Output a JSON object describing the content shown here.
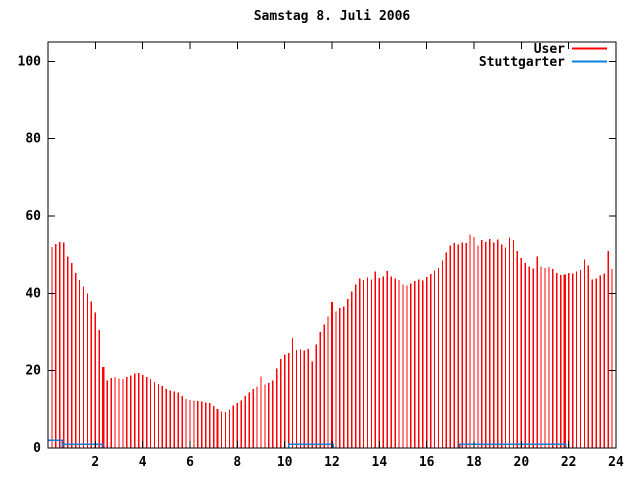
{
  "chart_data": {
    "type": "bar",
    "title": "Samstag 8. Juli 2006",
    "xlabel": "",
    "ylabel": "",
    "xlim": [
      0,
      24
    ],
    "ylim": [
      0,
      105
    ],
    "x_ticks": [
      2,
      4,
      6,
      8,
      10,
      12,
      14,
      16,
      18,
      20,
      22,
      24
    ],
    "y_ticks": [
      0,
      20,
      40,
      60,
      80,
      100
    ],
    "grid": false,
    "legend_position": "top-right",
    "series": [
      {
        "name": "User",
        "color": "#ff0000",
        "style": "impulses",
        "x_start_hours": 0.16667,
        "x_step_hours": 0.16667,
        "bold_marker_indices": [
          13,
          42,
          71,
          130
        ],
        "values": [
          52.0,
          52.8,
          53.3,
          53.1,
          49.5,
          47.9,
          45.3,
          43.5,
          41.8,
          39.9,
          37.9,
          35.0,
          30.5,
          21.0,
          17.5,
          18.1,
          18.4,
          18.0,
          17.8,
          18.3,
          18.8,
          19.3,
          19.4,
          18.9,
          18.4,
          17.9,
          17.1,
          16.5,
          16.0,
          15.3,
          14.9,
          14.6,
          14.3,
          13.4,
          12.7,
          12.4,
          12.3,
          12.1,
          12.0,
          11.8,
          11.6,
          10.9,
          10.1,
          9.4,
          9.3,
          10.0,
          11.0,
          11.6,
          12.3,
          13.5,
          14.4,
          15.2,
          15.9,
          18.5,
          16.4,
          16.8,
          17.5,
          20.5,
          23.0,
          24.2,
          24.6,
          28.4,
          25.3,
          25.5,
          25.2,
          25.6,
          22.4,
          26.8,
          30.0,
          32.0,
          34.0,
          37.8,
          35.3,
          36.2,
          36.6,
          38.5,
          40.5,
          42.3,
          43.9,
          43.4,
          44.1,
          43.6,
          45.6,
          44.0,
          44.3,
          45.8,
          44.4,
          43.9,
          43.4,
          42.3,
          42.0,
          42.6,
          43.2,
          43.6,
          43.3,
          44.2,
          45.0,
          45.9,
          46.6,
          48.5,
          50.5,
          52.4,
          53.0,
          52.6,
          53.2,
          53.0,
          55.2,
          54.6,
          52.4,
          53.8,
          53.3,
          54.0,
          53.1,
          53.9,
          52.6,
          51.8,
          54.4,
          53.8,
          50.9,
          49.1,
          47.8,
          46.9,
          46.4,
          49.5,
          47.0,
          46.5,
          46.8,
          46.3,
          45.2,
          44.7,
          44.9,
          45.3,
          45.1,
          45.6,
          46.0,
          48.8,
          47.2,
          43.6,
          43.9,
          44.6,
          45.1,
          51.0,
          46.3,
          48.4
        ]
      },
      {
        "name": "Stuttgarter",
        "color": "#0d7ddd",
        "style": "steps",
        "segments": [
          {
            "from_hour": 0.0,
            "to_hour": 0.6,
            "value": 2
          },
          {
            "from_hour": 0.6,
            "to_hour": 2.3,
            "value": 1
          },
          {
            "from_hour": 10.17,
            "to_hour": 12.05,
            "value": 1
          },
          {
            "from_hour": 17.4,
            "to_hour": 21.87,
            "value": 1
          }
        ]
      }
    ]
  },
  "colors": {
    "background": "#ffffff",
    "frame": "#000000",
    "text": "#000000"
  }
}
